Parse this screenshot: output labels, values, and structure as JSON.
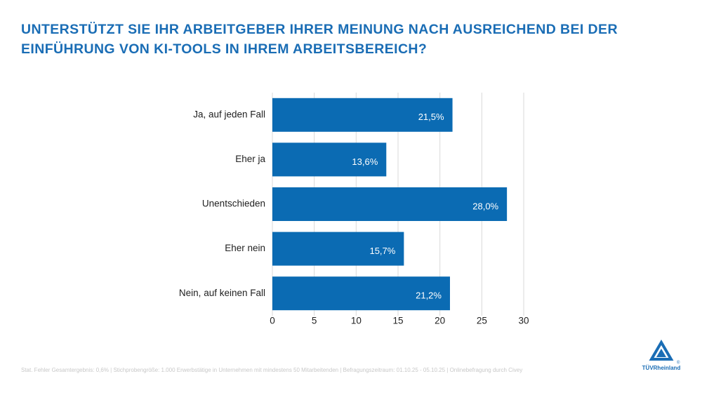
{
  "chart_data": {
    "type": "hbar",
    "title_lines": [
      "UNTERSTÜTZT SIE IHR ARBEITGEBER IHRER MEINUNG NACH AUSREICHEND BEI DER",
      "EINFÜHRUNG VON KI-TOOLS IN IHREM ARBEITSBEREICH?"
    ],
    "categories": [
      "Ja, auf jeden Fall",
      "Eher ja",
      "Unentschieden",
      "Eher nein",
      "Nein, auf keinen Fall"
    ],
    "values": [
      21.5,
      13.6,
      28.0,
      15.7,
      21.2
    ],
    "value_labels": [
      "21,5%",
      "13,6%",
      "28,0%",
      "15,7%",
      "21,2%"
    ],
    "color": "#0b6bb3",
    "xlim": [
      0,
      30
    ],
    "xticks": [
      0,
      5,
      10,
      15,
      20,
      25,
      30
    ],
    "grid": true,
    "footnote": "Stat. Fehler Gesamtergebnis: 0,6% | Stichprobengröße: 1.000 Erwerbstätige in Unternehmen mit mindestens 50 Mitarbeitenden | Befragungszeitraum: 01.10.25 - 05.10.25 | Onlinebefragung durch Civey"
  },
  "logo": {
    "text": "TÜVRheinland",
    "mark": "®"
  }
}
